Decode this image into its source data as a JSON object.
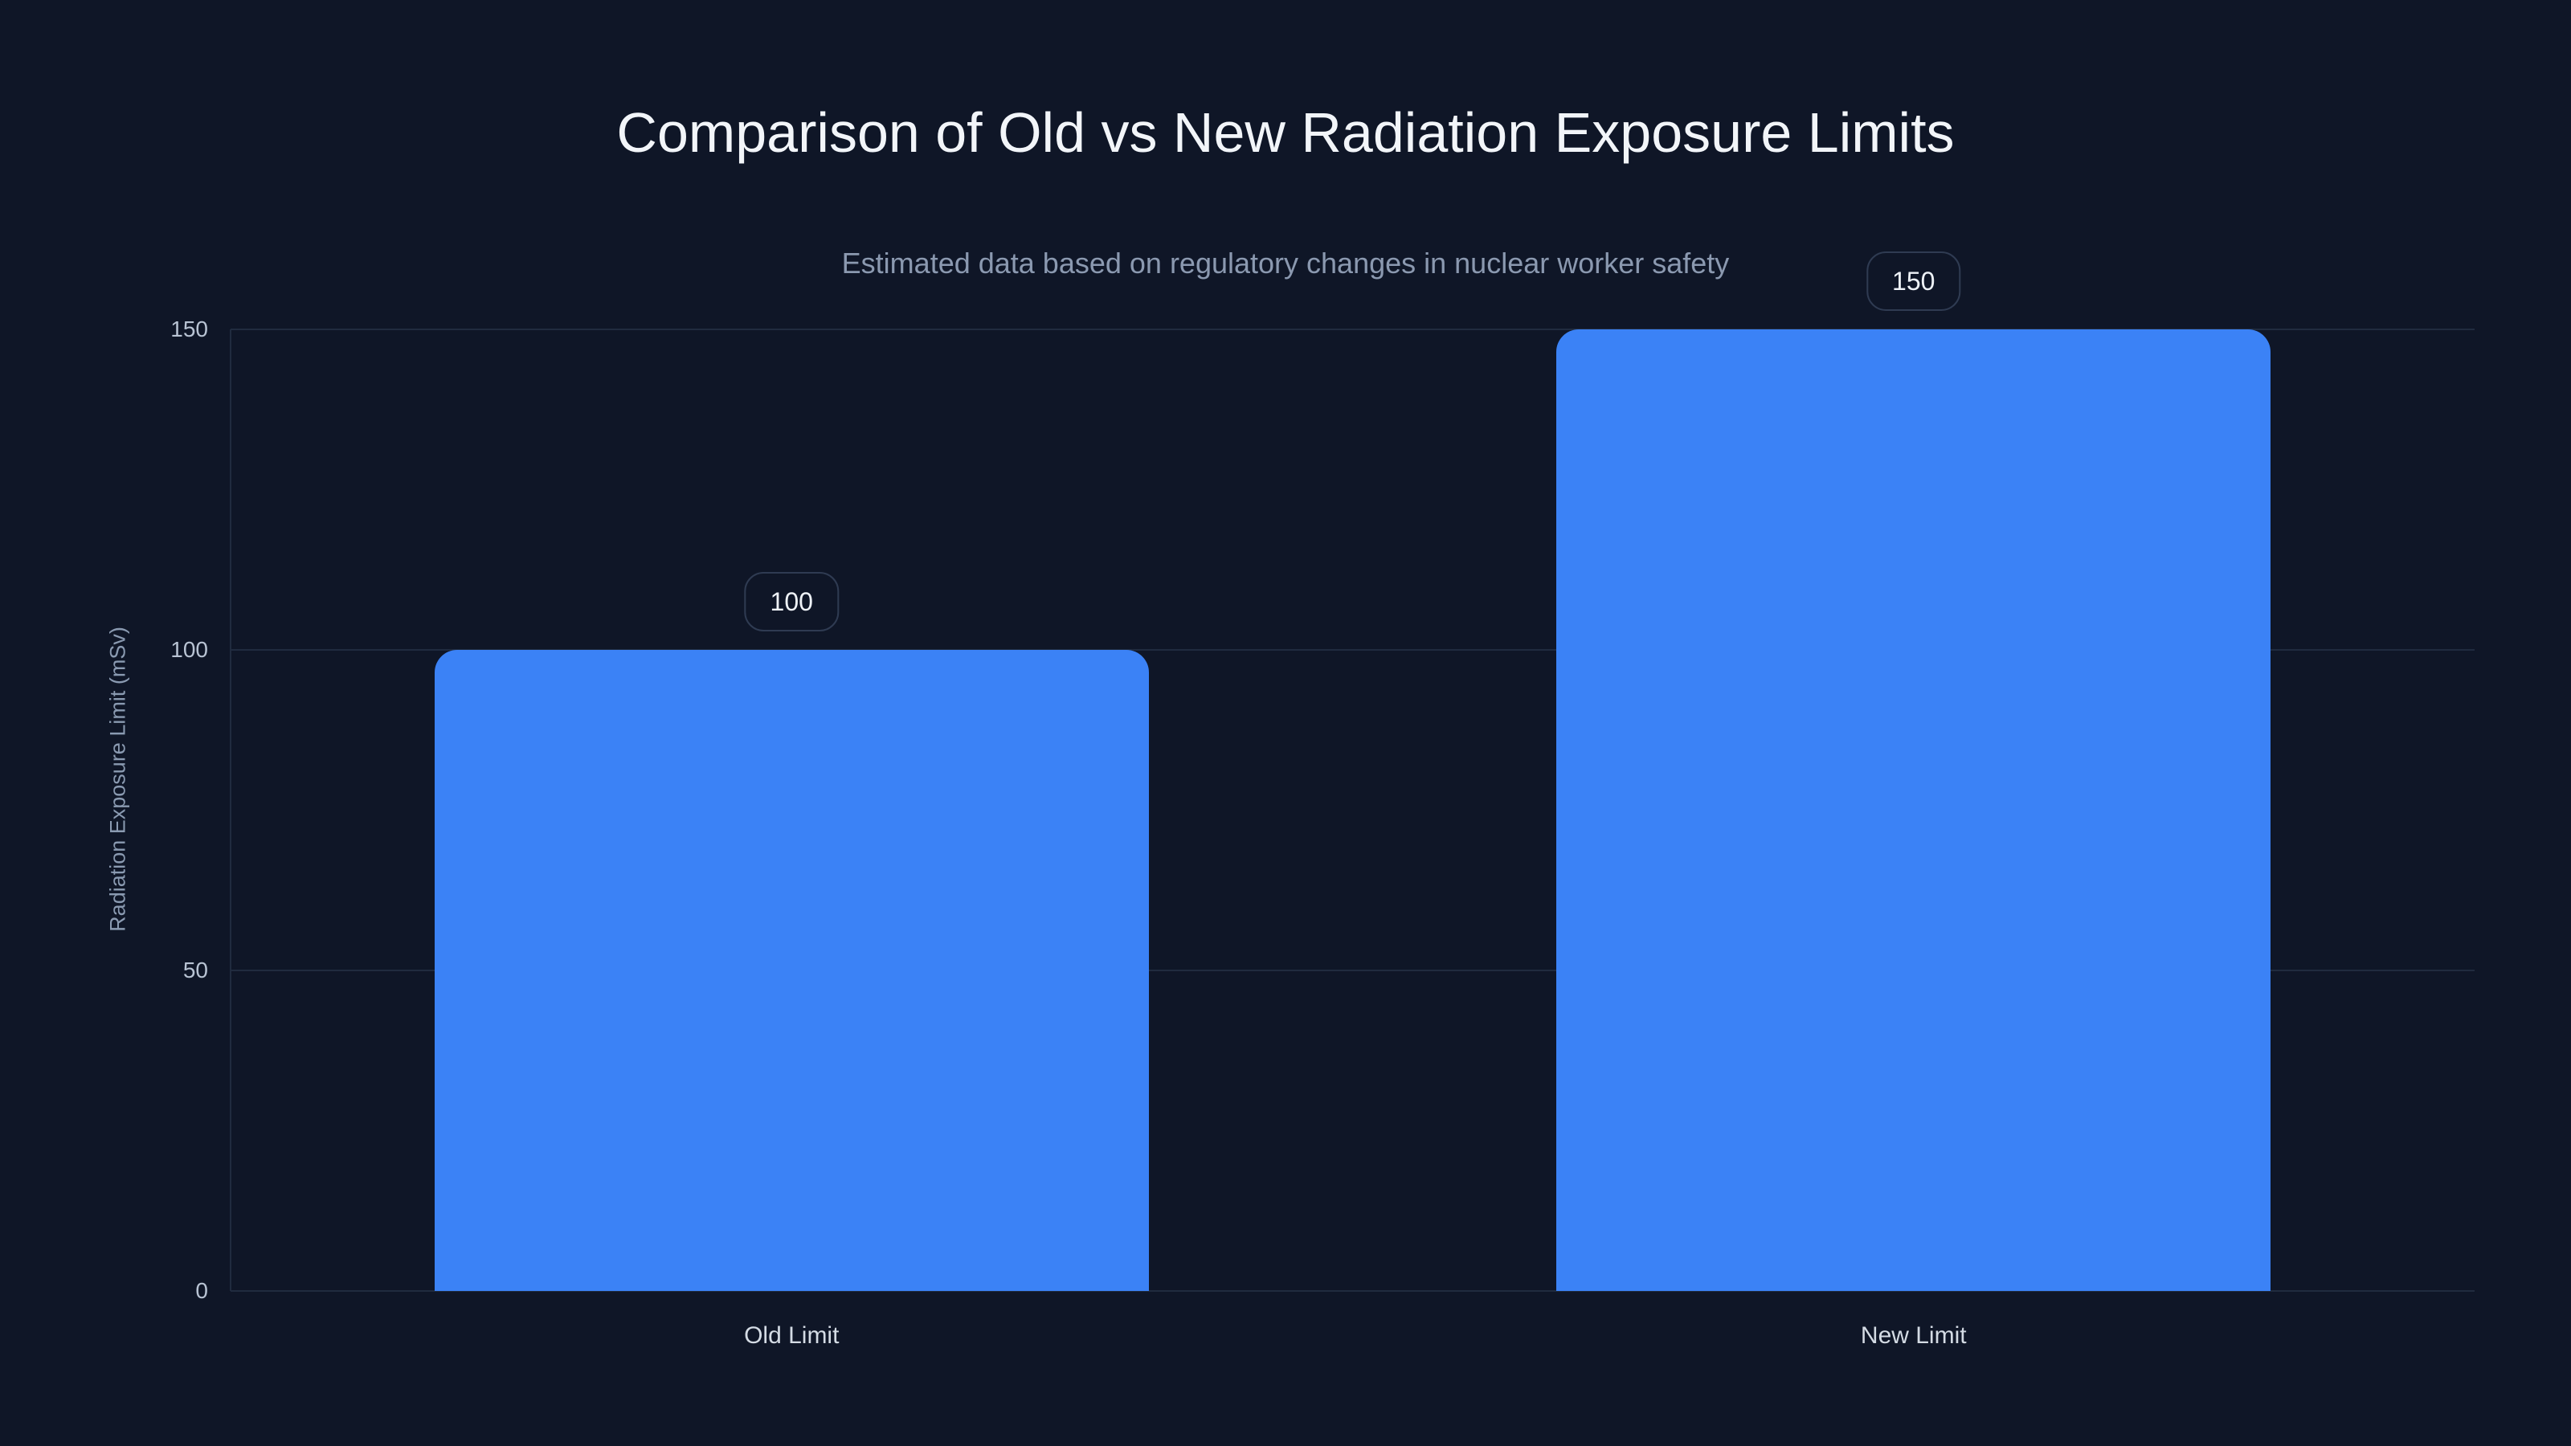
{
  "page": {
    "background_color": "#0f1627",
    "accent_color": "#3b82f6"
  },
  "chart_data": {
    "type": "bar",
    "title": "Comparison of Old vs New Radiation Exposure Limits",
    "subtitle": "Estimated data based on regulatory changes in nuclear worker safety",
    "categories": [
      "Old Limit",
      "New Limit"
    ],
    "values": [
      100,
      150
    ],
    "value_labels": [
      "100",
      "150"
    ],
    "xlabel": "",
    "ylabel": "Radiation Exposure Limit (mSv)",
    "ylim": [
      0,
      150
    ],
    "yticks": [
      0,
      50,
      100,
      150
    ],
    "ytick_labels": [
      "0",
      "50",
      "100",
      "150"
    ],
    "grid": true,
    "legend": false,
    "bar_color": "#3b82f6",
    "gridline_color": "#202b3f",
    "annotation_style": "outlined-rounded-badge-above-bar"
  }
}
